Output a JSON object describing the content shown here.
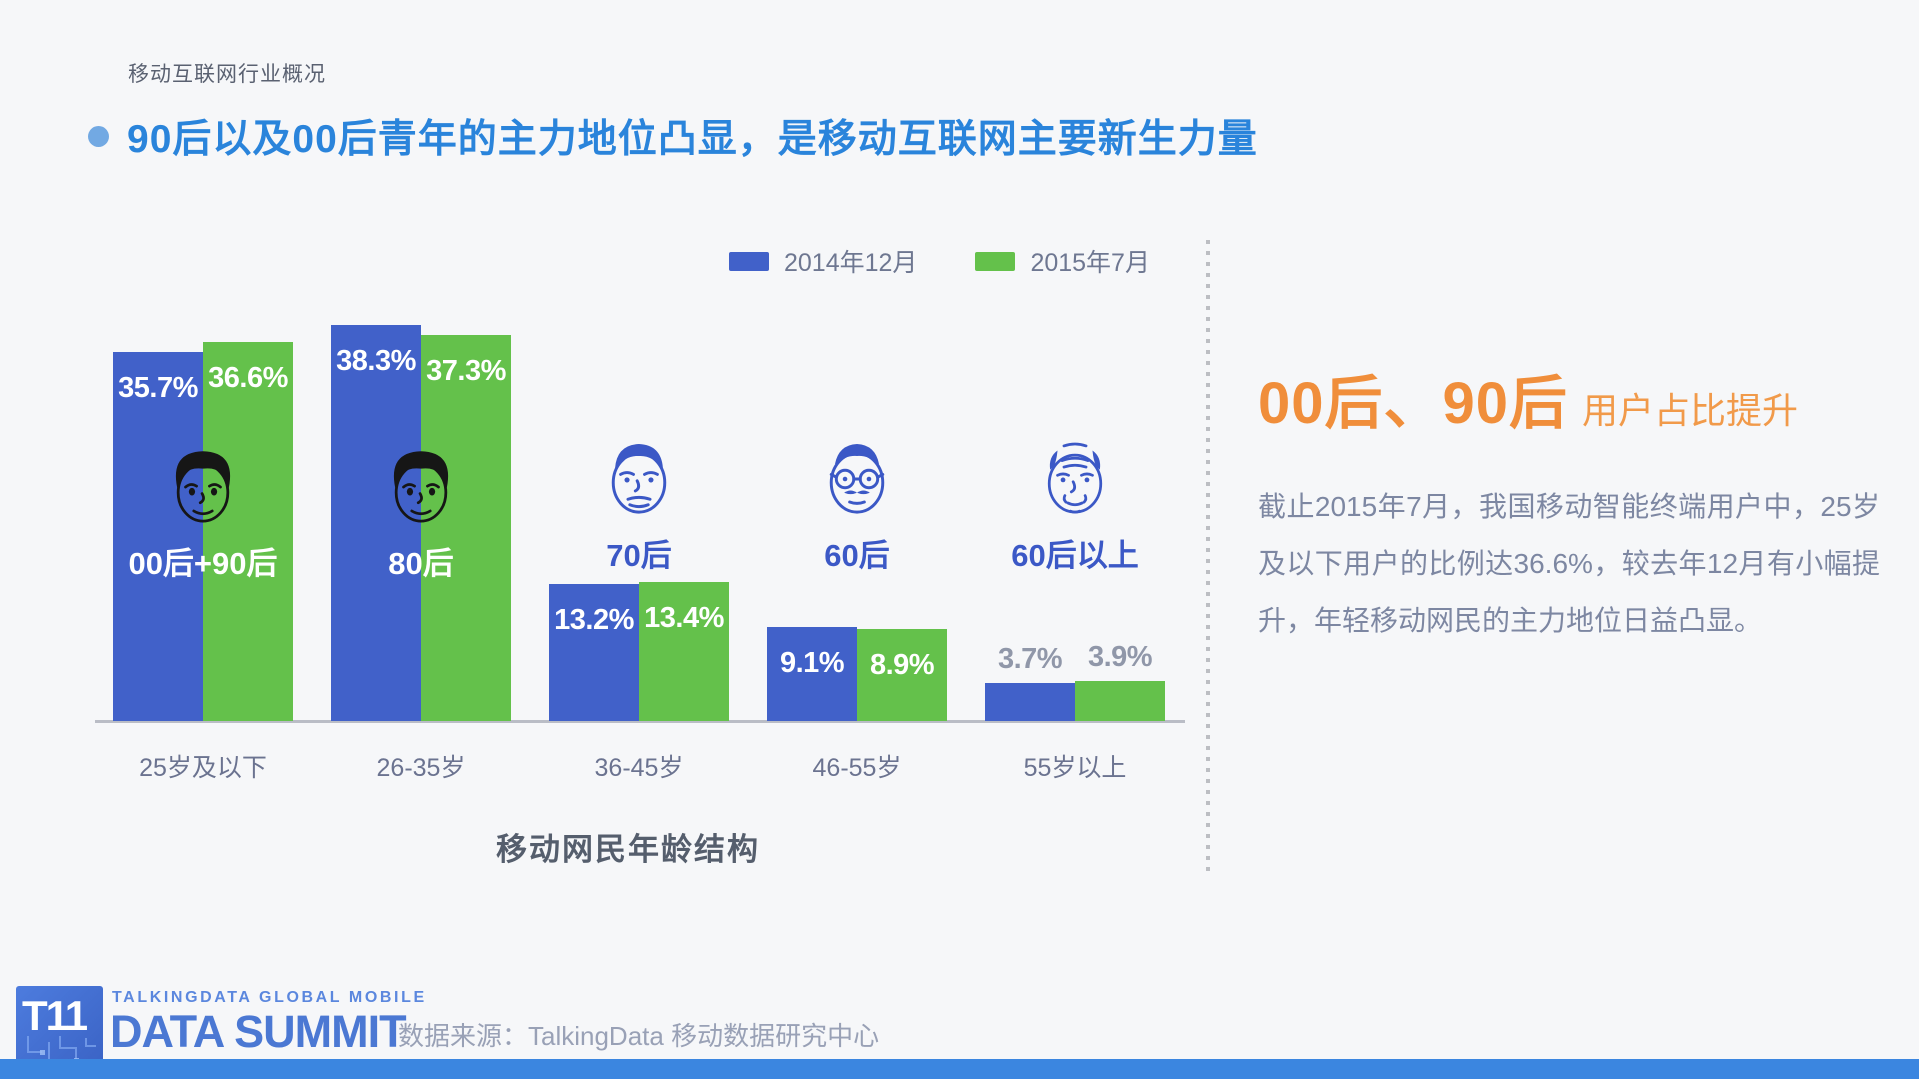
{
  "page": {
    "eyebrow": "移动互联网行业概况",
    "title": "90后以及00后青年的主力地位凸显，是移动互联网主要新生力量"
  },
  "chart_data": {
    "type": "bar",
    "title": "移动网民年龄结构",
    "categories": [
      "25岁及以下",
      "26-35岁",
      "36-45岁",
      "46-55岁",
      "55岁以上"
    ],
    "series": [
      {
        "name": "2014年12月",
        "color": "#4161c9",
        "values": [
          35.7,
          38.3,
          13.2,
          9.1,
          3.7
        ]
      },
      {
        "name": "2015年7月",
        "color": "#64c14b",
        "values": [
          36.6,
          37.3,
          13.4,
          8.9,
          3.9
        ]
      }
    ],
    "value_suffix": "%",
    "ylim": [
      0,
      40
    ],
    "grid": false,
    "legend_position": "top",
    "groups": [
      {
        "label": "00后+90后",
        "face": "young",
        "label_style": "on-bar",
        "value_labels": "inside"
      },
      {
        "label": "80后",
        "face": "young",
        "label_style": "on-bar",
        "value_labels": "inside"
      },
      {
        "label": "70后",
        "face": "adult",
        "label_style": "above",
        "value_labels": "inside"
      },
      {
        "label": "60后",
        "face": "glasses",
        "label_style": "above",
        "value_labels": "inside"
      },
      {
        "label": "60后以上",
        "face": "elderly",
        "label_style": "above",
        "value_labels": "above"
      }
    ]
  },
  "insight": {
    "headline_strong": "00后、90后",
    "headline_rest": "用户占比提升",
    "body": "截止2015年7月，我国移动智能终端用户中，25岁及以下用户的比例达36.6%，较去年12月有小幅提升，年轻移动网民的主力地位日益凸显。"
  },
  "footer": {
    "logo_mark": "T11",
    "logo_line1": "TALKINGDATA GLOBAL MOBILE",
    "logo_line2": "DATA SUMMIT",
    "source": "数据来源：TalkingData 移动数据研究中心"
  },
  "colors": {
    "title_blue": "#2a84db",
    "bullet_blue": "#72a9e3",
    "accent_orange": "#f08e3b",
    "face_dark": "#161616",
    "face_blue": "#3b58c6",
    "muted_value_label": "#9097a9",
    "bottom_bar_blue": "#3b86e0"
  }
}
